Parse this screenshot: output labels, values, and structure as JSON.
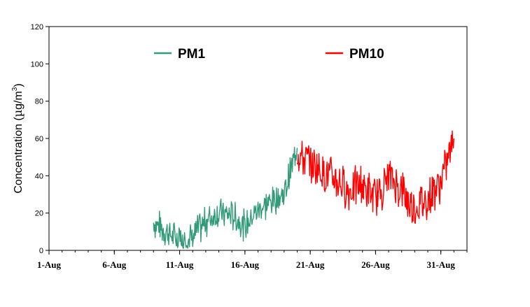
{
  "chart_data": {
    "type": "line",
    "ylabel": "Concentration (µg/m3)",
    "ylabel_parts": {
      "main": "Concentration (",
      "mu": "µ",
      "unit": "g/m",
      "sup": "3",
      "close": ")"
    },
    "ylim": [
      0,
      120
    ],
    "yticks": [
      "0",
      "20",
      "40",
      "60",
      "80",
      "100",
      "120"
    ],
    "xlim": [
      "1-Aug",
      "2-Sep"
    ],
    "xticks": [
      "1-Aug",
      "6-Aug",
      "11-Aug",
      "16-Aug",
      "21-Aug",
      "26-Aug",
      "31-Aug"
    ],
    "legend_position": "top",
    "grid": false,
    "series": [
      {
        "name": "PM1",
        "color": "#339a7a",
        "x": [
          "9-Aug",
          "10-Aug",
          "11-Aug",
          "12-Aug",
          "13-Aug",
          "14-Aug",
          "15-Aug",
          "16-Aug",
          "17-Aug",
          "18-Aug",
          "19-Aug",
          "20-Aug"
        ],
        "values": [
          15,
          10,
          5,
          7,
          16,
          20,
          19,
          13,
          22,
          26,
          30,
          55
        ]
      },
      {
        "name": "PM10",
        "color": "#ff0000",
        "x": [
          "20-Aug",
          "21-Aug",
          "22-Aug",
          "23-Aug",
          "24-Aug",
          "25-Aug",
          "26-Aug",
          "27-Aug",
          "28-Aug",
          "29-Aug",
          "30-Aug",
          "31-Aug",
          "1-Sep"
        ],
        "values": [
          52,
          47,
          42,
          38,
          32,
          35,
          27,
          40,
          32,
          22,
          28,
          37,
          60
        ]
      }
    ]
  }
}
